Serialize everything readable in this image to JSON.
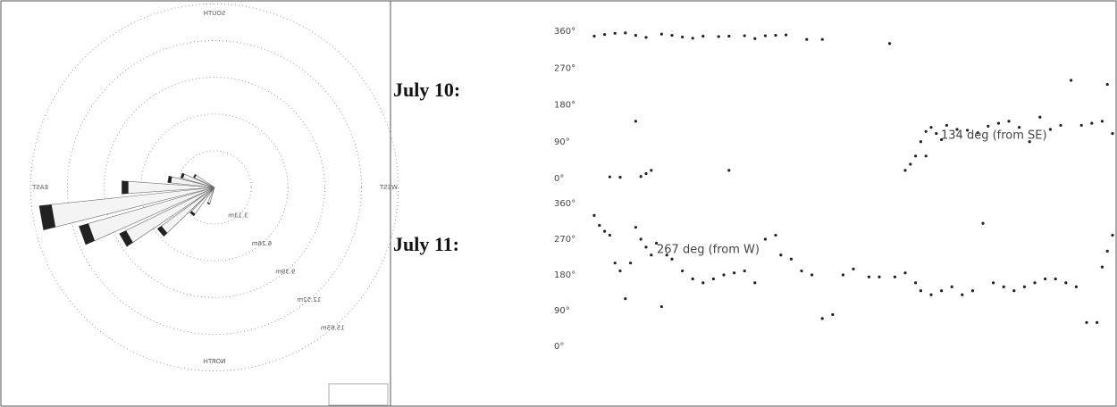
{
  "chart_data": [
    {
      "type": "windrose",
      "compass_labels": [
        "SOUTH",
        "WEST",
        "NORTH",
        "EAST"
      ],
      "directions": [
        200,
        220,
        230,
        240,
        250,
        260,
        270,
        280,
        290,
        300
      ],
      "values": [
        1.5,
        3,
        6,
        9,
        12,
        15,
        7.9,
        4,
        3,
        2
      ],
      "color": "#f4f4f4",
      "rlim": [
        0,
        17.5
      ],
      "rticks": [
        {
          "value": 3.13,
          "label": "3.13m"
        },
        {
          "value": 6.26,
          "label": "6.26m"
        },
        {
          "value": 9.39,
          "label": "9.39m"
        },
        {
          "value": 12.52,
          "label": "12.52m"
        },
        {
          "value": 15.65,
          "label": "15.65m"
        }
      ]
    },
    {
      "type": "scatter",
      "title": "July 10:",
      "annotation": "134 deg (from SE)",
      "color": "#222",
      "x": [
        0,
        2,
        4,
        6,
        8,
        10,
        13,
        15,
        17,
        19,
        21,
        24,
        26,
        29,
        31,
        33,
        35,
        37,
        41,
        44,
        3,
        5,
        9,
        10,
        11,
        8,
        26,
        57,
        60,
        61,
        62,
        63,
        64,
        65,
        66,
        67,
        68,
        70,
        72,
        74,
        76,
        78,
        80,
        82,
        84,
        86,
        88,
        90,
        92,
        94,
        96,
        98,
        99,
        100,
        64
      ],
      "values": [
        348,
        352,
        355,
        356,
        350,
        345,
        353,
        350,
        346,
        343,
        348,
        347,
        348,
        349,
        342,
        349,
        350,
        351,
        340,
        340,
        4,
        3,
        5,
        12,
        20,
        140,
        20,
        330,
        20,
        35,
        55,
        90,
        115,
        125,
        110,
        95,
        130,
        120,
        118,
        112,
        128,
        135,
        140,
        125,
        90,
        150,
        120,
        130,
        240,
        130,
        135,
        140,
        230,
        110,
        55
      ],
      "xlim": [
        0,
        100
      ],
      "ylim": [
        0,
        360
      ],
      "yticks": [
        {
          "value": 0,
          "label": "0°"
        },
        {
          "value": 90,
          "label": "90°"
        },
        {
          "value": 180,
          "label": "180°"
        },
        {
          "value": 270,
          "label": "270°"
        },
        {
          "value": 360,
          "label": "360°"
        }
      ]
    },
    {
      "type": "scatter",
      "title": "July 11:",
      "annotation": "267 deg (from W)",
      "color": "#222",
      "x": [
        0,
        1,
        2,
        3,
        4,
        5,
        6,
        7,
        8,
        9,
        10,
        11,
        12,
        13,
        14,
        15,
        17,
        19,
        21,
        23,
        25,
        27,
        29,
        31,
        33,
        35,
        36,
        38,
        40,
        42,
        44,
        46,
        48,
        50,
        53,
        55,
        58,
        60,
        62,
        63,
        65,
        67,
        69,
        71,
        73,
        75,
        77,
        79,
        81,
        83,
        85,
        87,
        89,
        91,
        93,
        95,
        97,
        98,
        99,
        100
      ],
      "values": [
        330,
        305,
        290,
        280,
        210,
        190,
        120,
        210,
        300,
        270,
        250,
        230,
        260,
        100,
        230,
        220,
        190,
        170,
        160,
        170,
        180,
        185,
        190,
        160,
        270,
        280,
        230,
        220,
        190,
        180,
        70,
        80,
        180,
        195,
        175,
        175,
        175,
        185,
        160,
        140,
        130,
        140,
        150,
        130,
        140,
        310,
        160,
        150,
        140,
        150,
        160,
        170,
        170,
        160,
        150,
        60,
        60,
        200,
        240,
        280
      ],
      "xlim": [
        0,
        100
      ],
      "ylim": [
        0,
        360
      ],
      "yticks": [
        {
          "value": 0,
          "label": "0°"
        },
        {
          "value": 90,
          "label": "90°"
        },
        {
          "value": 180,
          "label": "180°"
        },
        {
          "value": 270,
          "label": "270°"
        },
        {
          "value": 360,
          "label": "360°"
        }
      ]
    }
  ]
}
